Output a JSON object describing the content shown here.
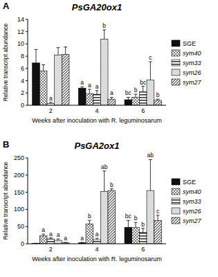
{
  "chart_data": [
    {
      "type": "bar",
      "panel": "A",
      "title": "PsGA20ox1",
      "y_label": "Relative transcript abundance",
      "x_label": "Weeks after inoculation with R. leguminosarum",
      "categories": [
        "2",
        "4",
        "6"
      ],
      "ylim": [
        0,
        14
      ],
      "yticks": [
        0,
        2,
        4,
        6,
        8,
        10,
        12,
        14
      ],
      "grid": false,
      "legend": "right",
      "series": [
        {
          "name": "SGE",
          "color": "#111111",
          "values": [
            6.9,
            2.8,
            0.9
          ],
          "errors": [
            2.2,
            0.2,
            0.4
          ],
          "letters": [
            null,
            "a",
            "bc"
          ]
        },
        {
          "name": "sym40",
          "color": "#555555",
          "values": [
            5.6,
            1.9,
            1.3
          ],
          "errors": [
            1.0,
            0.7,
            0.5
          ],
          "letters": [
            null,
            "a",
            "b"
          ]
        },
        {
          "name": "sym33",
          "color": "#333333",
          "values": [
            0.3,
            1.8,
            2.2
          ],
          "errors": [
            0.2,
            0.6,
            0.9
          ],
          "letters": [
            "a",
            "a",
            "bc"
          ]
        },
        {
          "name": "sym26",
          "color": "#999999",
          "values": [
            8.2,
            10.8,
            4.1
          ],
          "errors": [
            1.2,
            1.5,
            3.0
          ],
          "letters": [
            null,
            "b",
            "c"
          ]
        },
        {
          "name": "sym27",
          "color": "#444444",
          "values": [
            8.3,
            1.0,
            0.8
          ],
          "errors": [
            1.2,
            0.3,
            0.2
          ],
          "letters": [
            null,
            "a",
            "b"
          ]
        }
      ]
    },
    {
      "type": "bar",
      "panel": "B",
      "title": "PsGA2ox1",
      "y_label": "Relative transcript abundance",
      "x_label": "Weeks after inoculation with R. leguminosarum",
      "categories": [
        "2",
        "4",
        "6"
      ],
      "ylim": [
        0,
        250
      ],
      "yticks": [
        0,
        50,
        100,
        150,
        200,
        250
      ],
      "grid": false,
      "legend": "right",
      "series": [
        {
          "name": "SGE",
          "color": "#111111",
          "values": [
            1,
            3,
            48
          ],
          "errors": [
            0.5,
            1,
            20
          ],
          "letters": [
            null,
            "a",
            "bc"
          ]
        },
        {
          "name": "sym40",
          "color": "#555555",
          "values": [
            23,
            58,
            47
          ],
          "errors": [
            5,
            10,
            15
          ],
          "letters": [
            "a",
            "b",
            "b"
          ]
        },
        {
          "name": "sym33",
          "color": "#333333",
          "values": [
            14,
            12,
            33
          ],
          "errors": [
            3,
            4,
            12
          ],
          "letters": [
            "a",
            "a",
            "b"
          ]
        },
        {
          "name": "sym26",
          "color": "#999999",
          "values": [
            10,
            152,
            155
          ],
          "errors": [
            4,
            60,
            90
          ],
          "letters": [
            "a",
            "ab",
            "ab"
          ]
        },
        {
          "name": "sym27",
          "color": "#444444",
          "values": [
            3,
            155,
            68
          ],
          "errors": [
            1,
            5,
            15
          ],
          "letters": [
            "a",
            "b",
            "c"
          ]
        }
      ]
    }
  ]
}
